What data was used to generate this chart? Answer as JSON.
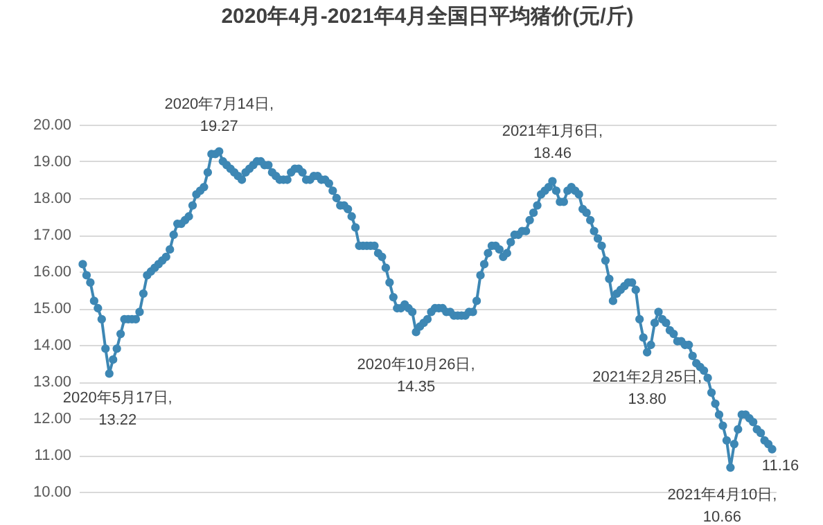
{
  "chart_data": {
    "type": "line",
    "title": "2020年4月-2021年4月全国日平均猪价(元/斤)",
    "categories": [
      null,
      null,
      null,
      null,
      null,
      null,
      null,
      null,
      null,
      null,
      null,
      null,
      null,
      null,
      null,
      null,
      null,
      null,
      null,
      null,
      null,
      null,
      null,
      null,
      null,
      null,
      null,
      null,
      null,
      null,
      null,
      null,
      null,
      null,
      null,
      null,
      null,
      null,
      null,
      null,
      null,
      null,
      null,
      null,
      null,
      null,
      null,
      null,
      null,
      null,
      null,
      null,
      null,
      null,
      null,
      null,
      null,
      null,
      null,
      null,
      null,
      null,
      null,
      null,
      null,
      null,
      null,
      null,
      null,
      null,
      null,
      null,
      null,
      null,
      null,
      null,
      null,
      null,
      null,
      null,
      null,
      null,
      null,
      null,
      null,
      null,
      null,
      null,
      null,
      null,
      null,
      null,
      null,
      null,
      null,
      null,
      null,
      null,
      null,
      null,
      null,
      null,
      null,
      null,
      null,
      null,
      null,
      null,
      null,
      null,
      null,
      null,
      null,
      null,
      null,
      null,
      null,
      null,
      null,
      null,
      null,
      null,
      null,
      null,
      null,
      null,
      null,
      null,
      null,
      null,
      null,
      null,
      null,
      null,
      null,
      null,
      null,
      null,
      null,
      null,
      null,
      null,
      null,
      null,
      null,
      null,
      null,
      null,
      null,
      null,
      null,
      null,
      null,
      null,
      null,
      null,
      null,
      null,
      null,
      null,
      null,
      null,
      null,
      null,
      null,
      null,
      null,
      null,
      null,
      null,
      null,
      null,
      null,
      null,
      null,
      null,
      null,
      null,
      null,
      null,
      null,
      null,
      null
    ],
    "series": [
      {
        "color": "#3d87b4",
        "values": [
          16.2,
          15.9,
          15.7,
          15.2,
          15.0,
          14.7,
          13.9,
          13.22,
          13.6,
          13.9,
          14.3,
          14.7,
          14.7,
          14.7,
          14.7,
          14.9,
          15.4,
          15.9,
          16.0,
          16.1,
          16.2,
          16.3,
          16.4,
          16.6,
          17.0,
          17.3,
          17.3,
          17.4,
          17.5,
          17.8,
          18.1,
          18.2,
          18.3,
          18.7,
          19.2,
          19.2,
          19.27,
          19.0,
          18.9,
          18.8,
          18.7,
          18.6,
          18.5,
          18.7,
          18.8,
          18.9,
          19.0,
          19.0,
          18.9,
          18.9,
          18.7,
          18.6,
          18.5,
          18.5,
          18.5,
          18.7,
          18.8,
          18.8,
          18.7,
          18.5,
          18.5,
          18.6,
          18.6,
          18.5,
          18.5,
          18.4,
          18.2,
          18.0,
          17.8,
          17.8,
          17.7,
          17.5,
          17.2,
          16.7,
          16.7,
          16.7,
          16.7,
          16.7,
          16.5,
          16.4,
          16.1,
          15.7,
          15.3,
          15.0,
          15.0,
          15.1,
          15.0,
          14.9,
          14.35,
          14.5,
          14.6,
          14.7,
          14.9,
          15.0,
          15.0,
          15.0,
          14.9,
          14.9,
          14.8,
          14.8,
          14.8,
          14.8,
          14.9,
          14.9,
          15.2,
          15.9,
          16.2,
          16.5,
          16.7,
          16.7,
          16.6,
          16.4,
          16.5,
          16.8,
          17.0,
          17.0,
          17.1,
          17.1,
          17.4,
          17.6,
          17.8,
          18.1,
          18.2,
          18.3,
          18.46,
          18.2,
          17.9,
          17.9,
          18.2,
          18.3,
          18.2,
          18.1,
          17.7,
          17.6,
          17.4,
          17.1,
          16.9,
          16.7,
          16.3,
          15.8,
          15.2,
          15.4,
          15.5,
          15.6,
          15.7,
          15.7,
          15.5,
          14.7,
          14.2,
          13.8,
          14.0,
          14.6,
          14.9,
          14.7,
          14.6,
          14.4,
          14.3,
          14.1,
          14.1,
          14.0,
          14.0,
          13.7,
          13.5,
          13.4,
          13.3,
          13.1,
          12.7,
          12.4,
          12.1,
          11.8,
          11.4,
          10.66,
          11.3,
          11.7,
          12.1,
          12.1,
          12.0,
          11.9,
          11.7,
          11.6,
          11.4,
          11.3,
          11.16
        ]
      }
    ],
    "ylim": [
      10,
      20
    ],
    "yticks": [
      {
        "value": 10,
        "label": "10.00"
      },
      {
        "value": 11,
        "label": "11.00"
      },
      {
        "value": 12,
        "label": "12.00"
      },
      {
        "value": 13,
        "label": "13.00"
      },
      {
        "value": 14,
        "label": "14.00"
      },
      {
        "value": 15,
        "label": "15.00"
      },
      {
        "value": 16,
        "label": "16.00"
      },
      {
        "value": 17,
        "label": "17.00"
      },
      {
        "value": 18,
        "label": "18.00"
      },
      {
        "value": 19,
        "label": "19.00"
      },
      {
        "value": 20,
        "label": "20.00"
      }
    ],
    "grid": "y",
    "tick_labels": "y",
    "marker": "circle",
    "annotations": [
      {
        "text": "2020年5月17日,\n13.22",
        "y": 13.22
      },
      {
        "text": "2020年7月14日,\n19.27",
        "y": 19.27
      },
      {
        "text": "2020年10月26日,\n14.35",
        "y": 14.35
      },
      {
        "text": "2021年1月6日,\n18.46",
        "y": 18.46
      },
      {
        "text": "2021年2月25日,\n13.80",
        "y": 13.8
      },
      {
        "text": "2021年4月10日,\n10.66",
        "y": 10.66
      },
      {
        "text": "11.16",
        "y": 11.16
      }
    ]
  }
}
